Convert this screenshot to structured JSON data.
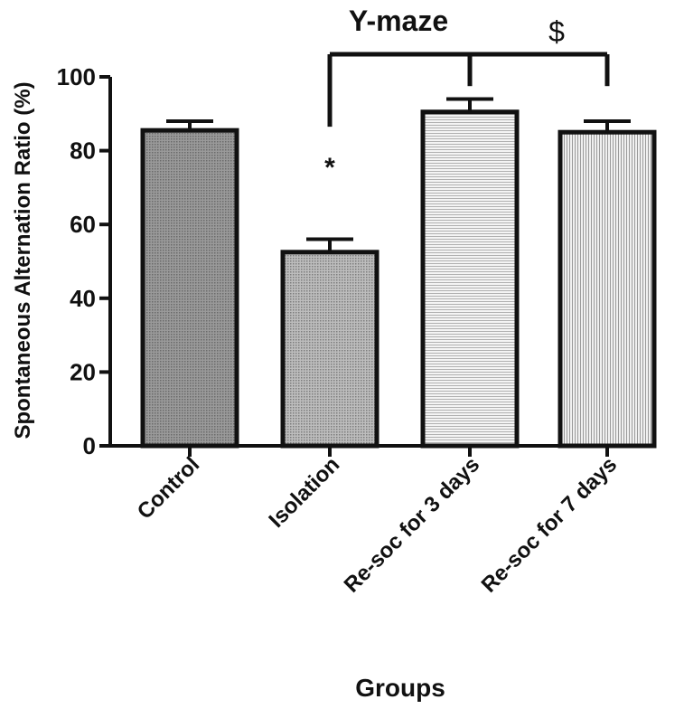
{
  "chart_data": {
    "type": "bar",
    "title": "Y-maze",
    "xlabel": "Groups",
    "ylabel": "Spontaneous Alternation Ratio (%)",
    "ylim": [
      0,
      100
    ],
    "yticks": [
      "0",
      "20",
      "40",
      "60",
      "80",
      "100"
    ],
    "categories": [
      "Control",
      "Isolation",
      "Re-soc for 3 days",
      "Re-soc for 7 days"
    ],
    "values": [
      85.5,
      52.5,
      90.5,
      85
    ],
    "errors": [
      2.5,
      3.5,
      3.5,
      3
    ],
    "bar_fill_colors": [
      "#8a8a8a",
      "#a8a8a8",
      "#e6e6e6",
      "#d6d6d6"
    ],
    "bar_patterns": [
      "dots",
      "dots",
      "horizontal-lines",
      "vertical-lines"
    ],
    "annotations": [
      {
        "text": "*",
        "category": "Isolation"
      },
      {
        "text": "$",
        "spans": [
          "Isolation",
          "Re-soc for 3 days",
          "Re-soc for 7 days"
        ]
      }
    ],
    "grid": false,
    "legend": "none"
  }
}
